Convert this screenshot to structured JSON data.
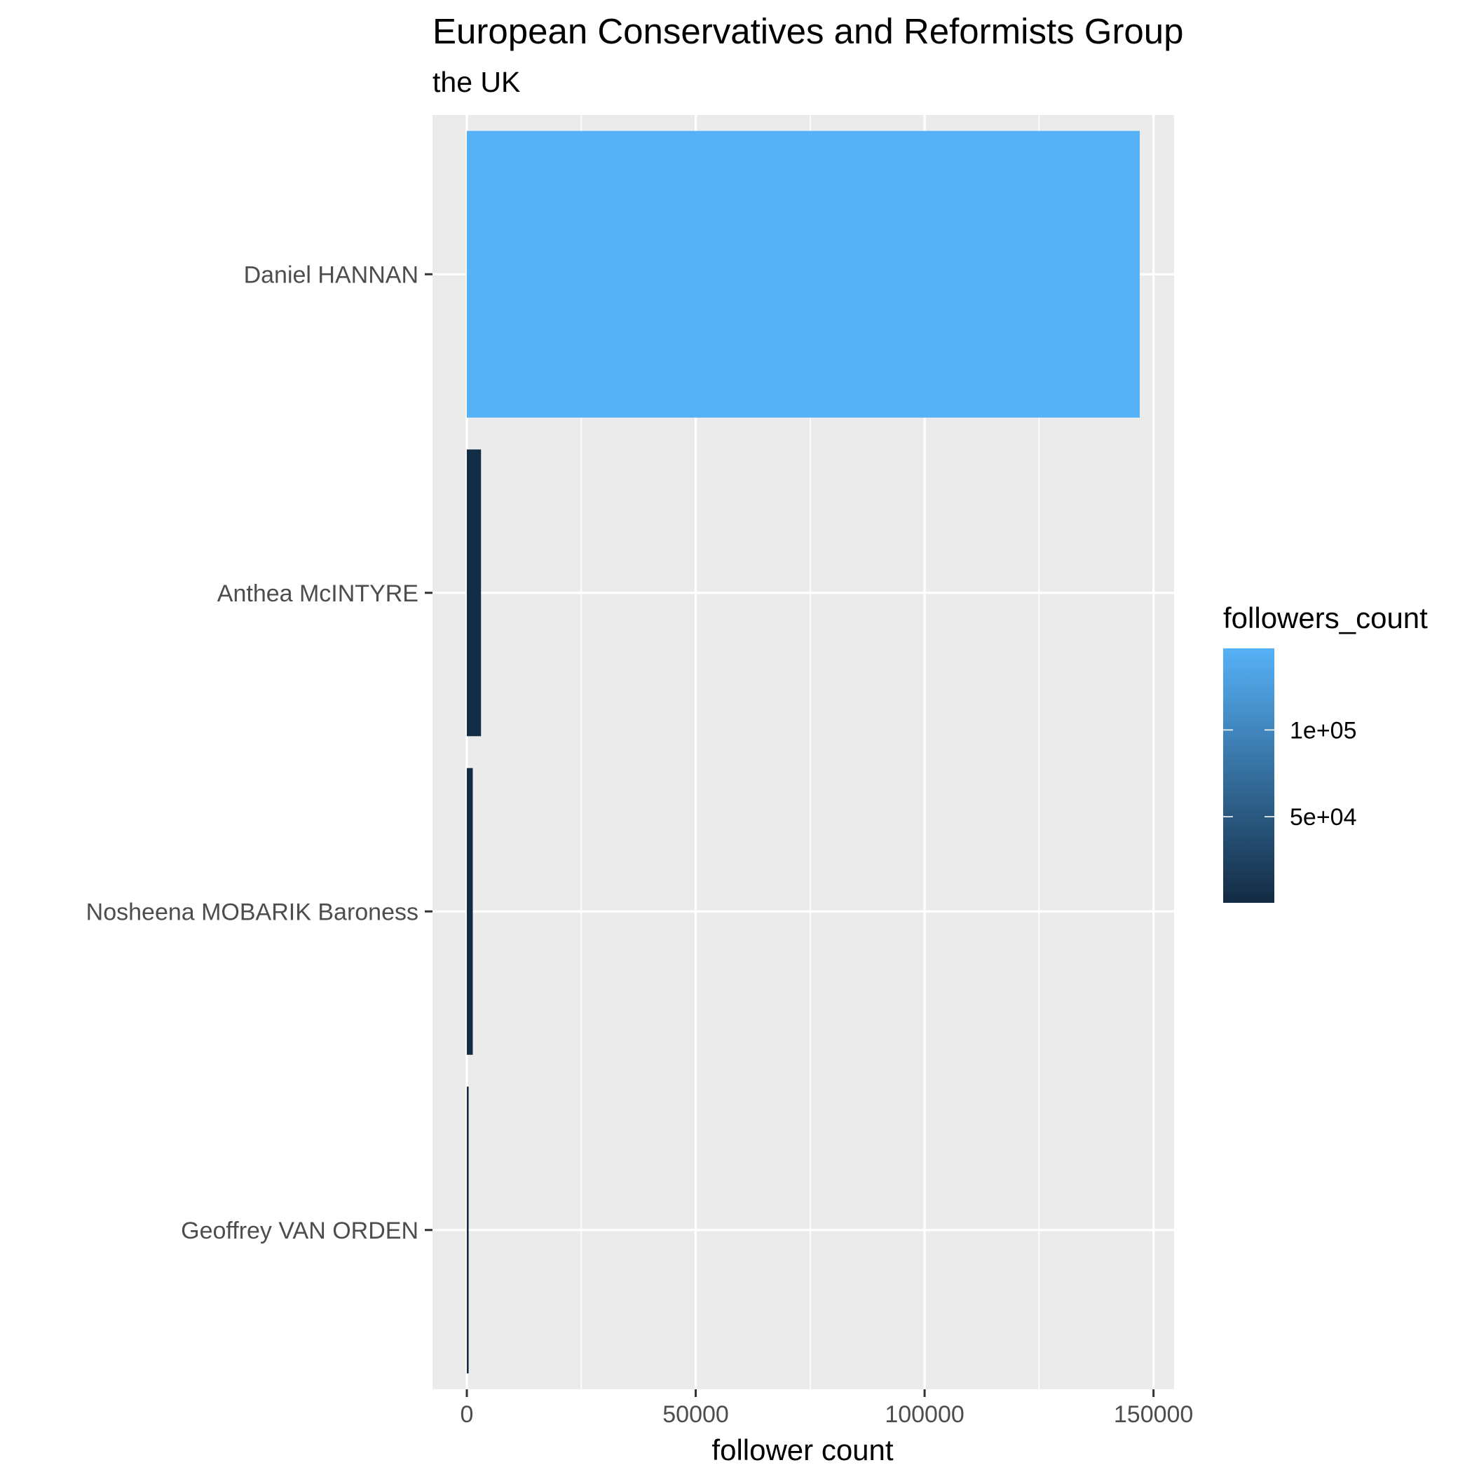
{
  "chart_data": {
    "type": "bar",
    "orientation": "horizontal",
    "title": "European Conservatives and Reformists Group",
    "subtitle": "the UK",
    "xlabel": "follower count",
    "ylabel": "",
    "categories": [
      "Daniel HANNAN",
      "Anthea McINTYRE",
      "Nosheena MOBARIK Baroness",
      "Geoffrey VAN ORDEN"
    ],
    "values": [
      147000,
      3100,
      1300,
      400
    ],
    "xlim": [
      -7500,
      154500
    ],
    "x_ticks": [
      0,
      50000,
      100000,
      150000
    ],
    "x_tick_labels": [
      "0",
      "50000",
      "100000",
      "150000"
    ],
    "grid": true,
    "legend": {
      "title": "followers_count",
      "placement": "right",
      "type": "colorbar",
      "range": [
        400,
        147000
      ],
      "breaks": [
        50000,
        100000
      ],
      "break_labels": [
        "5e+04",
        "1e+05"
      ],
      "low_color": "#132B43",
      "high_color": "#56B1F7"
    },
    "colors": {
      "panel_background": "#EBEBEB",
      "grid_major": "#FFFFFF"
    }
  }
}
